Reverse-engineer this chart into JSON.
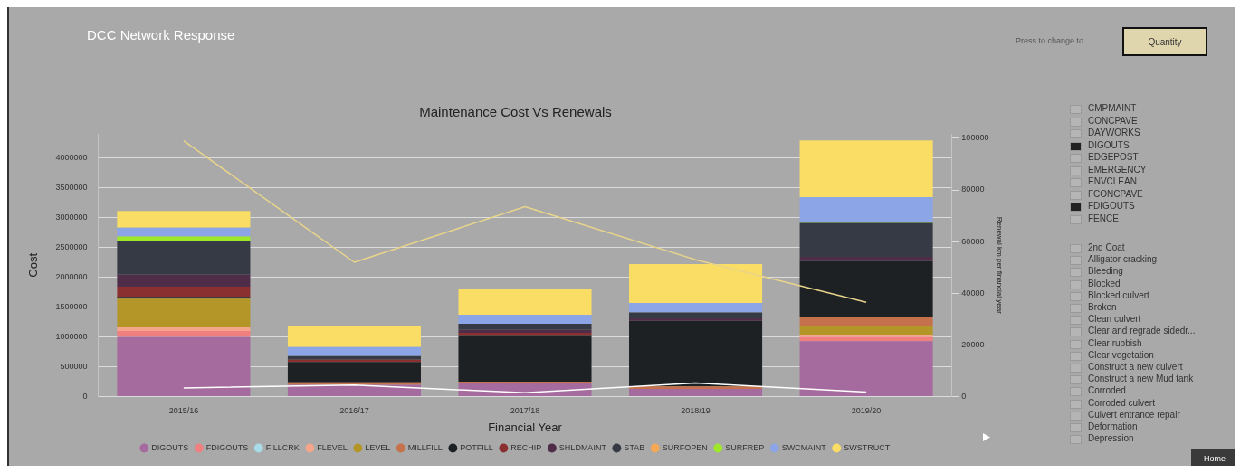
{
  "chart_data": {
    "type": "bar",
    "title": "DCC Network Response",
    "subtitle": "Maintenance Cost Vs Renewals",
    "xlabel": "Financial Year",
    "ylabel": "Cost",
    "y2label": "Renewal km per financial year",
    "categories": [
      "2015/16",
      "2016/17",
      "2017/18",
      "2018/19",
      "2019/20"
    ],
    "stacked": true,
    "grid": "y",
    "legend": "bottom",
    "marker": "circle",
    "ylim": [
      0,
      4400000
    ],
    "yticks": [
      0,
      500000,
      1000000,
      1500000,
      2000000,
      2500000,
      3000000,
      3500000,
      4000000
    ],
    "y2lim": [
      0,
      101700
    ],
    "y2ticks": [
      0,
      20000,
      40000,
      60000,
      80000,
      100000
    ],
    "series": [
      {
        "name": "DIGOUTS",
        "color": "#a66b9e",
        "values": [
          1000000,
          200000,
          220000,
          130000,
          930000
        ]
      },
      {
        "name": "FDIGOUTS",
        "color": "#f07f7f",
        "values": [
          100000,
          0,
          0,
          0,
          70000
        ]
      },
      {
        "name": "FILLCRK",
        "color": "#a8dce8",
        "values": [
          0,
          0,
          0,
          0,
          0
        ]
      },
      {
        "name": "FLEVEL",
        "color": "#f5a58a",
        "values": [
          60000,
          0,
          0,
          0,
          40000
        ]
      },
      {
        "name": "LEVEL",
        "color": "#b39528",
        "values": [
          480000,
          0,
          0,
          0,
          140000
        ]
      },
      {
        "name": "MILLFILL",
        "color": "#c4714c",
        "values": [
          0,
          40000,
          30000,
          40000,
          150000
        ]
      },
      {
        "name": "POTFILL",
        "color": "#1d2123",
        "values": [
          30000,
          340000,
          780000,
          1100000,
          940000
        ]
      },
      {
        "name": "RECHIP",
        "color": "#8a3030",
        "values": [
          170000,
          40000,
          40000,
          0,
          0
        ]
      },
      {
        "name": "SHLDMAINT",
        "color": "#4f2c48",
        "values": [
          200000,
          0,
          50000,
          40000,
          70000
        ]
      },
      {
        "name": "STAB",
        "color": "#363a45",
        "values": [
          560000,
          60000,
          100000,
          100000,
          570000
        ]
      },
      {
        "name": "SURFOPEN",
        "color": "#f5a856",
        "values": [
          0,
          0,
          0,
          0,
          0
        ]
      },
      {
        "name": "SURFREP",
        "color": "#9ee82a",
        "values": [
          80000,
          0,
          0,
          0,
          20000
        ]
      },
      {
        "name": "SWCMAINT",
        "color": "#8ca5e6",
        "values": [
          150000,
          150000,
          150000,
          160000,
          410000
        ]
      },
      {
        "name": "SWSTRUCT",
        "color": "#fadd64",
        "values": [
          280000,
          360000,
          440000,
          650000,
          950000
        ]
      },
      {
        "type": "line",
        "axis": "y2",
        "color": "#e8d48a",
        "marker": "none",
        "values": [
          99000,
          52000,
          73500,
          53000,
          36500
        ]
      },
      {
        "type": "line",
        "axis": "y2",
        "color": "#ffffff",
        "marker": "none",
        "values": [
          3400,
          4500,
          1500,
          5300,
          1800
        ]
      }
    ],
    "annotations": [
      "Press to change to",
      "Quantity",
      "CMPMAINT",
      "CONCPAVE",
      "DAYWORKS",
      "DIGOUTS",
      "EDGEPOST",
      "EMERGENCY",
      "ENVCLEAN",
      "FCONCPAVE",
      "FDIGOUTS",
      "FENCE",
      "2nd Coat",
      "Alligator cracking",
      "Bleeding",
      "Blocked",
      "Blocked culvert",
      "Broken",
      "Clean culvert",
      "Clear and regrade sidedr...",
      "Clear rubbish",
      "Clear vegetation",
      "Construct a new culvert",
      "Construct a new Mud tank",
      "Corroded",
      "Corroded culvert",
      "Culvert entrance repair",
      "Deformation",
      "Depression",
      "Home"
    ]
  }
}
